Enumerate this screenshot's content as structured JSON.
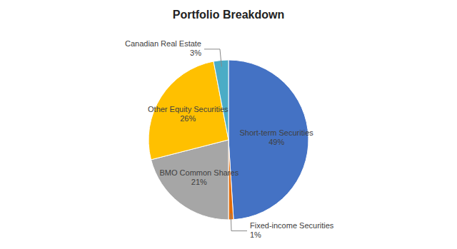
{
  "chart_data": {
    "type": "pie",
    "title": "Portfolio Breakdown",
    "categories": [
      "Short-term Securities",
      "Fixed-income Securities",
      "BMO Common Shares",
      "Other Equity Securities",
      "Canadian Real Estate"
    ],
    "values": [
      49,
      1,
      21,
      26,
      3
    ],
    "value_labels": [
      "49%",
      "1%",
      "21%",
      "26%",
      "3%"
    ],
    "colors": [
      "#4472C4",
      "#E36C09",
      "#A6A6A6",
      "#FFC000",
      "#4BACC6"
    ]
  }
}
